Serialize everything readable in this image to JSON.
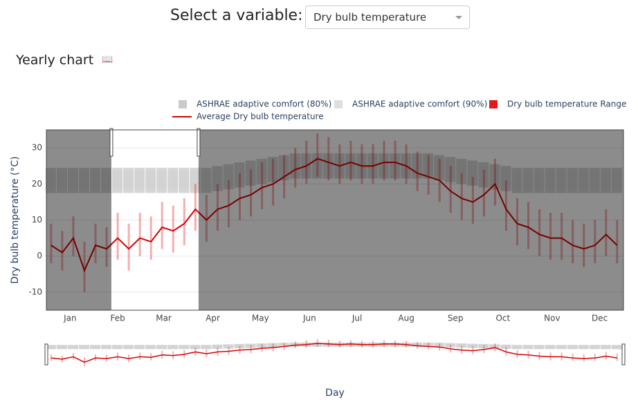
{
  "ui": {
    "select_label": "Select a variable:",
    "select_value": "Dry bulb temperature",
    "section_title": "Yearly chart"
  },
  "chart_data": {
    "type": "band-line",
    "ylabel": "Dry bulb temperature (°C)",
    "xlabel": "Day",
    "xlim": [
      1,
      365
    ],
    "ylim": [
      -15,
      35
    ],
    "yticks": [
      -10,
      0,
      10,
      20,
      30
    ],
    "xticks": [
      {
        "value": 16,
        "label": "Jan"
      },
      {
        "value": 46,
        "label": "Feb"
      },
      {
        "value": 75,
        "label": "Mar"
      },
      {
        "value": 106,
        "label": "Apr"
      },
      {
        "value": 136,
        "label": "May"
      },
      {
        "value": 167,
        "label": "Jun"
      },
      {
        "value": 197,
        "label": "Jul"
      },
      {
        "value": 228,
        "label": "Aug"
      },
      {
        "value": 259,
        "label": "Sep"
      },
      {
        "value": 289,
        "label": "Oct"
      },
      {
        "value": 320,
        "label": "Nov"
      },
      {
        "value": 350,
        "label": "Dec"
      }
    ],
    "grid": true,
    "selection": [
      42,
      97
    ],
    "x": [
      4,
      11,
      18,
      25,
      32,
      39,
      46,
      53,
      60,
      67,
      74,
      81,
      88,
      95,
      102,
      109,
      116,
      123,
      130,
      137,
      144,
      151,
      158,
      165,
      172,
      179,
      186,
      193,
      200,
      207,
      214,
      221,
      228,
      235,
      242,
      249,
      256,
      263,
      270,
      277,
      284,
      291,
      298,
      305,
      312,
      319,
      326,
      333,
      340,
      347,
      354,
      361
    ],
    "series": [
      {
        "name": "ASHRAE adaptive comfort (80%)",
        "color": "#b4b4b4",
        "low": [
          17.5,
          17.5,
          17.5,
          17.5,
          17.5,
          17.5,
          17.5,
          17.5,
          17.5,
          17.5,
          17.5,
          17.5,
          17.5,
          17.5,
          17.5,
          18,
          18.5,
          19,
          19.5,
          20,
          20.5,
          21,
          21.5,
          21.5,
          21.5,
          21.5,
          21.5,
          21.5,
          21.5,
          21.5,
          21.5,
          21.5,
          21.5,
          21.5,
          21.5,
          21,
          20.5,
          20,
          19.5,
          19,
          18.5,
          18,
          17.5,
          17.5,
          17.5,
          17.5,
          17.5,
          17.5,
          17.5,
          17.5,
          17.5,
          17.5
        ],
        "high": [
          24.5,
          24.5,
          24.5,
          24.5,
          24.5,
          24.5,
          24.5,
          24.5,
          24.5,
          24.5,
          24.5,
          24.5,
          24.5,
          24.5,
          24.5,
          25,
          25.5,
          26,
          26.5,
          27,
          27.5,
          28,
          28.5,
          28.5,
          28.5,
          28.5,
          28.5,
          28.5,
          28.5,
          28.5,
          28.5,
          28.5,
          28.5,
          28.5,
          28.5,
          28,
          27.5,
          27,
          26.5,
          26,
          25.5,
          25,
          24.5,
          24.5,
          24.5,
          24.5,
          24.5,
          24.5,
          24.5,
          24.5,
          24.5,
          24.5
        ]
      },
      {
        "name": "ASHRAE adaptive comfort (90%)",
        "color": "#d2d2d2",
        "low": [
          18.5,
          18.5,
          18.5,
          18.5,
          18.5,
          18.5,
          18.5,
          18.5,
          18.5,
          18.5,
          18.5,
          18.5,
          18.5,
          18.5,
          18.5,
          19,
          19.5,
          20,
          20.5,
          21,
          21.5,
          22,
          22.5,
          22.5,
          22.5,
          22.5,
          22.5,
          22.5,
          22.5,
          22.5,
          22.5,
          22.5,
          22.5,
          22.5,
          22.5,
          22,
          21.5,
          21,
          20.5,
          20,
          19.5,
          19,
          18.5,
          18.5,
          18.5,
          18.5,
          18.5,
          18.5,
          18.5,
          18.5,
          18.5,
          18.5
        ],
        "high": [
          23.5,
          23.5,
          23.5,
          23.5,
          23.5,
          23.5,
          23.5,
          23.5,
          23.5,
          23.5,
          23.5,
          23.5,
          23.5,
          23.5,
          23.5,
          24,
          24.5,
          25,
          25.5,
          26,
          26.5,
          27,
          27.5,
          27.5,
          27.5,
          27.5,
          27.5,
          27.5,
          27.5,
          27.5,
          27.5,
          27.5,
          27.5,
          27.5,
          27.5,
          27,
          26.5,
          26,
          25.5,
          25,
          24.5,
          24,
          23.5,
          23.5,
          23.5,
          23.5,
          23.5,
          23.5,
          23.5,
          23.5,
          23.5,
          23.5
        ]
      },
      {
        "name": "Dry bulb temperature Range",
        "color": "#e31a1c",
        "low": [
          -2,
          -4,
          0,
          -10,
          -2,
          -3,
          -1,
          -4,
          0,
          -1,
          2,
          1,
          3,
          7,
          4,
          7,
          8,
          10,
          11,
          13,
          14,
          16,
          19,
          20,
          22,
          21,
          20,
          21,
          20,
          20,
          21,
          21,
          20,
          18,
          17,
          15,
          12,
          10,
          9,
          11,
          14,
          7,
          3,
          2,
          0,
          -1,
          -1,
          -2,
          -3,
          -2,
          0,
          -2
        ],
        "high": [
          9,
          7,
          11,
          4,
          9,
          8,
          12,
          9,
          12,
          11,
          15,
          14,
          16,
          20,
          17,
          20,
          21,
          23,
          24,
          26,
          27,
          28,
          30,
          32,
          34,
          33,
          31,
          32,
          31,
          31,
          32,
          32,
          31,
          29,
          28,
          27,
          25,
          23,
          22,
          24,
          27,
          21,
          16,
          15,
          13,
          12,
          12,
          10,
          9,
          10,
          13,
          10
        ]
      },
      {
        "name": "Average Dry bulb temperature",
        "color": "#d40000",
        "values": [
          3,
          1,
          5,
          -4,
          3,
          2,
          5,
          2,
          5,
          4,
          8,
          7,
          9,
          13,
          10,
          13,
          14,
          16,
          17,
          19,
          20,
          22,
          24,
          25,
          27,
          26,
          25,
          26,
          25,
          25,
          26,
          26,
          25,
          23,
          22,
          21,
          18,
          16,
          15,
          17,
          20,
          13,
          9,
          8,
          6,
          5,
          5,
          3,
          2,
          3,
          6,
          3
        ]
      }
    ]
  }
}
